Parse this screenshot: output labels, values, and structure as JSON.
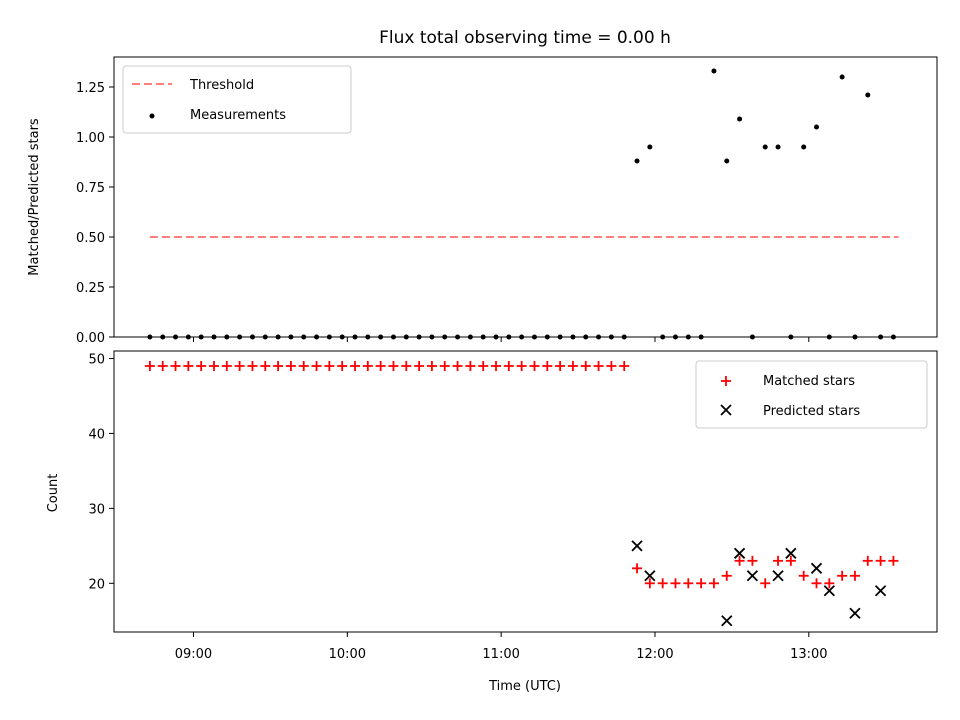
{
  "chart_data": [
    {
      "type": "scatter",
      "title": "Flux total observing time = 0.00 h",
      "xlabel": "",
      "ylabel": "Matched/Predicted stars",
      "ylim": [
        0,
        1.4
      ],
      "yticks": [
        "0.00",
        "0.25",
        "0.50",
        "0.75",
        "1.00",
        "1.25"
      ],
      "legend_position": "upper left",
      "threshold": {
        "name": "Threshold",
        "color": "#ff7f7f",
        "style": "dashed",
        "value": 0.5,
        "x_range": [
          "08:43",
          "13:35"
        ]
      },
      "series": [
        {
          "name": "Measurements",
          "marker": "dot",
          "color": "#000000",
          "x": [
            "08:43",
            "08:48",
            "08:53",
            "08:58",
            "09:03",
            "09:08",
            "09:13",
            "09:18",
            "09:23",
            "09:28",
            "09:33",
            "09:38",
            "09:43",
            "09:48",
            "09:53",
            "09:58",
            "10:03",
            "10:08",
            "10:13",
            "10:18",
            "10:23",
            "10:28",
            "10:33",
            "10:38",
            "10:43",
            "10:48",
            "10:53",
            "10:58",
            "11:03",
            "11:08",
            "11:13",
            "11:18",
            "11:23",
            "11:28",
            "11:33",
            "11:38",
            "11:43",
            "11:48",
            "11:53",
            "11:58",
            "12:03",
            "12:08",
            "12:13",
            "12:18",
            "12:23",
            "12:28",
            "12:33",
            "12:38",
            "12:43",
            "12:48",
            "12:53",
            "12:58",
            "13:03",
            "13:08",
            "13:13",
            "13:18",
            "13:23",
            "13:28",
            "13:33"
          ],
          "y": [
            0,
            0,
            0,
            0,
            0,
            0,
            0,
            0,
            0,
            0,
            0,
            0,
            0,
            0,
            0,
            0,
            0,
            0,
            0,
            0,
            0,
            0,
            0,
            0,
            0,
            0,
            0,
            0,
            0,
            0,
            0,
            0,
            0,
            0,
            0,
            0,
            0,
            0,
            0.88,
            0.95,
            0,
            0,
            0,
            0,
            1.33,
            0.88,
            1.09,
            0,
            0.95,
            0.95,
            0,
            0.95,
            1.05,
            0,
            1.3,
            0,
            1.21,
            0,
            0
          ]
        }
      ]
    },
    {
      "type": "scatter",
      "title": "",
      "xlabel": "Time (UTC)",
      "ylabel": "Count",
      "ylim": [
        13.5,
        51
      ],
      "yticks": [
        "20",
        "30",
        "40",
        "50"
      ],
      "xticks": [
        "09:00",
        "10:00",
        "11:00",
        "12:00",
        "13:00"
      ],
      "legend_position": "upper right",
      "series": [
        {
          "name": "Matched stars",
          "marker": "plus",
          "color": "#ff0000",
          "x": [
            "08:43",
            "08:48",
            "08:53",
            "08:58",
            "09:03",
            "09:08",
            "09:13",
            "09:18",
            "09:23",
            "09:28",
            "09:33",
            "09:38",
            "09:43",
            "09:48",
            "09:53",
            "09:58",
            "10:03",
            "10:08",
            "10:13",
            "10:18",
            "10:23",
            "10:28",
            "10:33",
            "10:38",
            "10:43",
            "10:48",
            "10:53",
            "10:58",
            "11:03",
            "11:08",
            "11:13",
            "11:18",
            "11:23",
            "11:28",
            "11:33",
            "11:38",
            "11:43",
            "11:48",
            "11:53",
            "11:58",
            "12:03",
            "12:08",
            "12:13",
            "12:18",
            "12:23",
            "12:28",
            "12:33",
            "12:38",
            "12:43",
            "12:48",
            "12:53",
            "12:58",
            "13:03",
            "13:08",
            "13:13",
            "13:18",
            "13:23",
            "13:28",
            "13:33"
          ],
          "y": [
            49,
            49,
            49,
            49,
            49,
            49,
            49,
            49,
            49,
            49,
            49,
            49,
            49,
            49,
            49,
            49,
            49,
            49,
            49,
            49,
            49,
            49,
            49,
            49,
            49,
            49,
            49,
            49,
            49,
            49,
            49,
            49,
            49,
            49,
            49,
            49,
            49,
            49,
            22,
            20,
            20,
            20,
            20,
            20,
            20,
            21,
            23,
            23,
            20,
            23,
            23,
            21,
            20,
            20,
            21,
            21,
            23,
            23,
            23
          ]
        },
        {
          "name": "Predicted stars",
          "marker": "x",
          "color": "#000000",
          "x": [
            "11:53",
            "11:58",
            "12:28",
            "12:33",
            "12:38",
            "12:48",
            "12:53",
            "13:03",
            "13:08",
            "13:18",
            "13:28"
          ],
          "y": [
            25,
            21,
            15,
            24,
            21,
            21,
            24,
            22,
            19,
            16,
            19
          ]
        }
      ]
    }
  ]
}
